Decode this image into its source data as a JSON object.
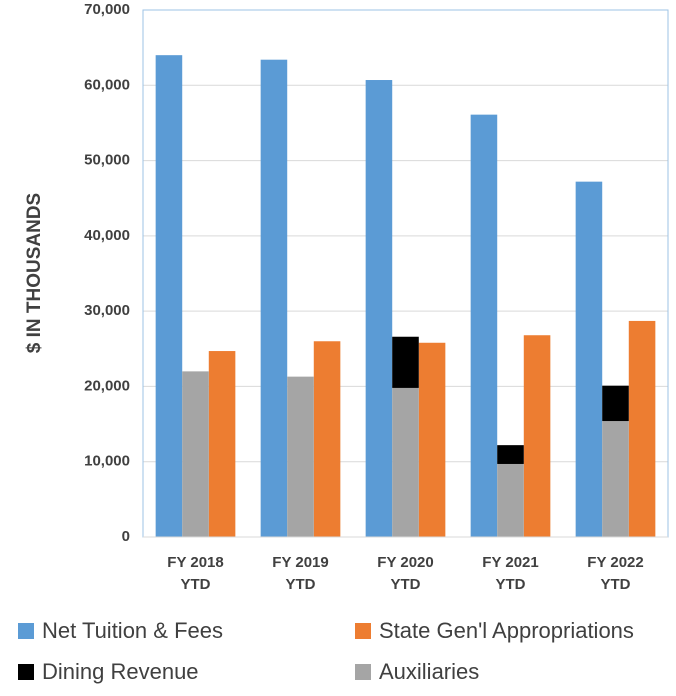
{
  "chart_data": {
    "type": "bar",
    "categories": [
      "FY 2018 YTD",
      "FY 2019 YTD",
      "FY 2020 YTD",
      "FY 2021 YTD",
      "FY 2022 YTD"
    ],
    "y_label": "$ IN THOUSANDS",
    "series": [
      {
        "name": "Net Tuition & Fees",
        "color": "#5b9bd5",
        "values": [
          64000,
          63400,
          60700,
          56100,
          47200
        ]
      },
      {
        "name": "State Gen'l Appropriations",
        "color": "#ed7d31",
        "values": [
          24700,
          26000,
          25800,
          26800,
          28700
        ]
      },
      {
        "name": "Dining Revenue",
        "color": "#000000",
        "values": [
          0,
          0,
          6800,
          2500,
          4700
        ]
      },
      {
        "name": "Auxiliaries",
        "color": "#a5a5a5",
        "values": [
          22000,
          21300,
          19800,
          9700,
          15400
        ]
      }
    ],
    "ylim": [
      0,
      70000
    ],
    "yticks": [
      0,
      {
        "value": 10000,
        "label": "10,000"
      },
      {
        "value": 20000,
        "label": "20,000"
      },
      {
        "value": 30000,
        "label": "30,000"
      },
      {
        "value": 40000,
        "label": "40,000"
      },
      {
        "value": 50000,
        "label": "50,000"
      },
      {
        "value": 60000,
        "label": "60,000"
      },
      {
        "value": 70000,
        "label": "70,000"
      }
    ],
    "grid": true
  }
}
